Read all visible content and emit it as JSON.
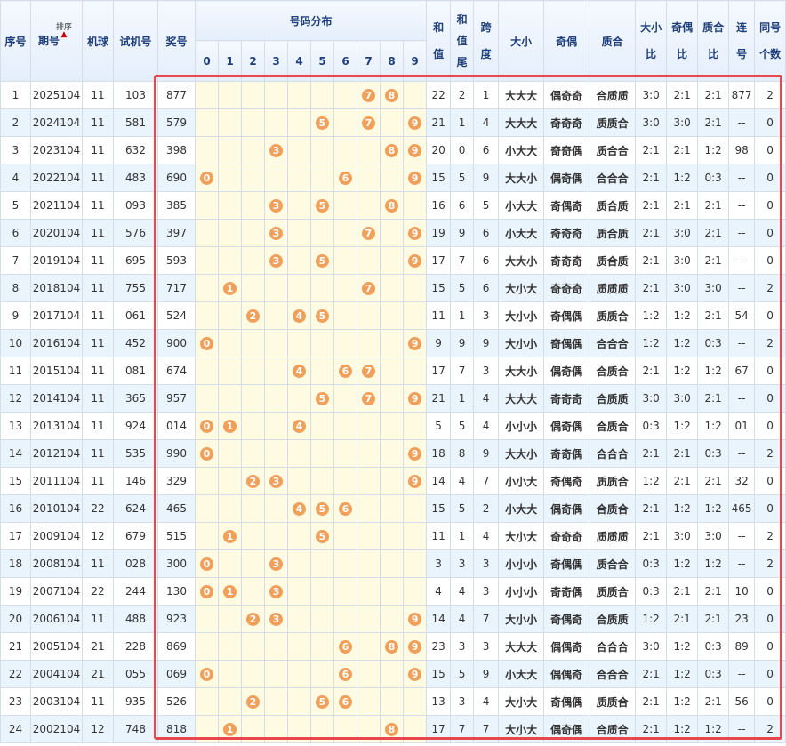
{
  "headers": {
    "seq": "序号",
    "period": "期号",
    "sort": "排序",
    "machine": "机球",
    "trial": "试机号",
    "prize": "奖号",
    "dist": "号码分布",
    "digits": [
      "0",
      "1",
      "2",
      "3",
      "4",
      "5",
      "6",
      "7",
      "8",
      "9"
    ],
    "sum": "和值",
    "sum_tail": "和值尾",
    "span": "跨度",
    "size": "大小",
    "parity": "奇偶",
    "prime": "质合",
    "size_ratio": "大小比",
    "parity_ratio": "奇偶比",
    "prime_ratio": "质合比",
    "consec": "连号",
    "same": "同号个数"
  },
  "rows": [
    {
      "seq": "1",
      "period": "2025104",
      "machine": "11",
      "trial": "103",
      "prize": "877",
      "digits": [
        7,
        8
      ],
      "sum": "22",
      "tail": "2",
      "span": "1",
      "size": "大大大",
      "parity": "偶奇奇",
      "prime": "合质质",
      "sr": "3:0",
      "pr": "2:1",
      "qr": "2:1",
      "consec": "877",
      "same": "2"
    },
    {
      "seq": "2",
      "period": "2024104",
      "machine": "11",
      "trial": "581",
      "prize": "579",
      "digits": [
        5,
        7,
        9
      ],
      "sum": "21",
      "tail": "1",
      "span": "4",
      "size": "大大大",
      "parity": "奇奇奇",
      "prime": "质质合",
      "sr": "3:0",
      "pr": "3:0",
      "qr": "2:1",
      "consec": "--",
      "same": "0"
    },
    {
      "seq": "3",
      "period": "2023104",
      "machine": "11",
      "trial": "632",
      "prize": "398",
      "digits": [
        3,
        8,
        9
      ],
      "sum": "20",
      "tail": "0",
      "span": "6",
      "size": "小大大",
      "parity": "奇奇偶",
      "prime": "质合合",
      "sr": "2:1",
      "pr": "2:1",
      "qr": "1:2",
      "consec": "98",
      "same": "0"
    },
    {
      "seq": "4",
      "period": "2022104",
      "machine": "11",
      "trial": "483",
      "prize": "690",
      "digits": [
        0,
        6,
        9
      ],
      "sum": "15",
      "tail": "5",
      "span": "9",
      "size": "大大小",
      "parity": "偶奇偶",
      "prime": "合合合",
      "sr": "2:1",
      "pr": "1:2",
      "qr": "0:3",
      "consec": "--",
      "same": "0"
    },
    {
      "seq": "5",
      "period": "2021104",
      "machine": "11",
      "trial": "093",
      "prize": "385",
      "digits": [
        3,
        5,
        8
      ],
      "sum": "16",
      "tail": "6",
      "span": "5",
      "size": "小大大",
      "parity": "奇偶奇",
      "prime": "质合质",
      "sr": "2:1",
      "pr": "2:1",
      "qr": "2:1",
      "consec": "--",
      "same": "0"
    },
    {
      "seq": "6",
      "period": "2020104",
      "machine": "11",
      "trial": "576",
      "prize": "397",
      "digits": [
        3,
        7,
        9
      ],
      "sum": "19",
      "tail": "9",
      "span": "6",
      "size": "小大大",
      "parity": "奇奇奇",
      "prime": "质合质",
      "sr": "2:1",
      "pr": "3:0",
      "qr": "2:1",
      "consec": "--",
      "same": "0"
    },
    {
      "seq": "7",
      "period": "2019104",
      "machine": "11",
      "trial": "695",
      "prize": "593",
      "digits": [
        3,
        5,
        9
      ],
      "sum": "17",
      "tail": "7",
      "span": "6",
      "size": "大大小",
      "parity": "奇奇奇",
      "prime": "质合质",
      "sr": "2:1",
      "pr": "3:0",
      "qr": "2:1",
      "consec": "--",
      "same": "0"
    },
    {
      "seq": "8",
      "period": "2018104",
      "machine": "11",
      "trial": "755",
      "prize": "717",
      "digits": [
        1,
        7
      ],
      "sum": "15",
      "tail": "5",
      "span": "6",
      "size": "大小大",
      "parity": "奇奇奇",
      "prime": "质质质",
      "sr": "2:1",
      "pr": "3:0",
      "qr": "3:0",
      "consec": "--",
      "same": "2"
    },
    {
      "seq": "9",
      "period": "2017104",
      "machine": "11",
      "trial": "061",
      "prize": "524",
      "digits": [
        2,
        4,
        5
      ],
      "sum": "11",
      "tail": "1",
      "span": "3",
      "size": "大小小",
      "parity": "奇偶偶",
      "prime": "质质合",
      "sr": "1:2",
      "pr": "1:2",
      "qr": "2:1",
      "consec": "54",
      "same": "0"
    },
    {
      "seq": "10",
      "period": "2016104",
      "machine": "11",
      "trial": "452",
      "prize": "900",
      "digits": [
        0,
        9
      ],
      "sum": "9",
      "tail": "9",
      "span": "9",
      "size": "大小小",
      "parity": "奇偶偶",
      "prime": "合合合",
      "sr": "1:2",
      "pr": "1:2",
      "qr": "0:3",
      "consec": "--",
      "same": "2"
    },
    {
      "seq": "11",
      "period": "2015104",
      "machine": "11",
      "trial": "081",
      "prize": "674",
      "digits": [
        4,
        6,
        7
      ],
      "sum": "17",
      "tail": "7",
      "span": "3",
      "size": "大大小",
      "parity": "偶奇偶",
      "prime": "合质合",
      "sr": "2:1",
      "pr": "1:2",
      "qr": "1:2",
      "consec": "67",
      "same": "0"
    },
    {
      "seq": "12",
      "period": "2014104",
      "machine": "11",
      "trial": "365",
      "prize": "957",
      "digits": [
        5,
        7,
        9
      ],
      "sum": "21",
      "tail": "1",
      "span": "4",
      "size": "大大大",
      "parity": "奇奇奇",
      "prime": "合质质",
      "sr": "3:0",
      "pr": "3:0",
      "qr": "2:1",
      "consec": "--",
      "same": "0"
    },
    {
      "seq": "13",
      "period": "2013104",
      "machine": "11",
      "trial": "924",
      "prize": "014",
      "digits": [
        0,
        1,
        4
      ],
      "sum": "5",
      "tail": "5",
      "span": "4",
      "size": "小小小",
      "parity": "偶奇偶",
      "prime": "合质合",
      "sr": "0:3",
      "pr": "1:2",
      "qr": "1:2",
      "consec": "01",
      "same": "0"
    },
    {
      "seq": "14",
      "period": "2012104",
      "machine": "11",
      "trial": "535",
      "prize": "990",
      "digits": [
        0,
        9
      ],
      "sum": "18",
      "tail": "8",
      "span": "9",
      "size": "大大小",
      "parity": "奇奇偶",
      "prime": "合合合",
      "sr": "2:1",
      "pr": "2:1",
      "qr": "0:3",
      "consec": "--",
      "same": "2"
    },
    {
      "seq": "15",
      "period": "2011104",
      "machine": "11",
      "trial": "146",
      "prize": "329",
      "digits": [
        2,
        3,
        9
      ],
      "sum": "14",
      "tail": "4",
      "span": "7",
      "size": "小小大",
      "parity": "奇偶奇",
      "prime": "质质合",
      "sr": "1:2",
      "pr": "2:1",
      "qr": "2:1",
      "consec": "32",
      "same": "0"
    },
    {
      "seq": "16",
      "period": "2010104",
      "machine": "22",
      "trial": "624",
      "prize": "465",
      "digits": [
        4,
        5,
        6
      ],
      "sum": "15",
      "tail": "5",
      "span": "2",
      "size": "小大大",
      "parity": "偶奇偶",
      "prime": "合质合",
      "sr": "2:1",
      "pr": "1:2",
      "qr": "1:2",
      "consec": "465",
      "same": "0"
    },
    {
      "seq": "17",
      "period": "2009104",
      "machine": "12",
      "trial": "679",
      "prize": "515",
      "digits": [
        1,
        5
      ],
      "sum": "11",
      "tail": "1",
      "span": "4",
      "size": "大小大",
      "parity": "奇奇奇",
      "prime": "质质质",
      "sr": "2:1",
      "pr": "3:0",
      "qr": "3:0",
      "consec": "--",
      "same": "2"
    },
    {
      "seq": "18",
      "period": "2008104",
      "machine": "11",
      "trial": "028",
      "prize": "300",
      "digits": [
        0,
        3
      ],
      "sum": "3",
      "tail": "3",
      "span": "3",
      "size": "小小小",
      "parity": "奇偶偶",
      "prime": "质合合",
      "sr": "0:3",
      "pr": "1:2",
      "qr": "1:2",
      "consec": "--",
      "same": "2"
    },
    {
      "seq": "19",
      "period": "2007104",
      "machine": "22",
      "trial": "244",
      "prize": "130",
      "digits": [
        0,
        1,
        3
      ],
      "sum": "4",
      "tail": "4",
      "span": "3",
      "size": "小小小",
      "parity": "奇奇偶",
      "prime": "质质合",
      "sr": "0:3",
      "pr": "2:1",
      "qr": "2:1",
      "consec": "10",
      "same": "0"
    },
    {
      "seq": "20",
      "period": "2006104",
      "machine": "11",
      "trial": "488",
      "prize": "923",
      "digits": [
        2,
        3,
        9
      ],
      "sum": "14",
      "tail": "4",
      "span": "7",
      "size": "大小小",
      "parity": "奇偶奇",
      "prime": "合质质",
      "sr": "1:2",
      "pr": "2:1",
      "qr": "2:1",
      "consec": "23",
      "same": "0"
    },
    {
      "seq": "21",
      "period": "2005104",
      "machine": "21",
      "trial": "228",
      "prize": "869",
      "digits": [
        6,
        8,
        9
      ],
      "sum": "23",
      "tail": "3",
      "span": "3",
      "size": "大大大",
      "parity": "偶偶奇",
      "prime": "合合合",
      "sr": "3:0",
      "pr": "1:2",
      "qr": "0:3",
      "consec": "89",
      "same": "0"
    },
    {
      "seq": "22",
      "period": "2004104",
      "machine": "21",
      "trial": "055",
      "prize": "069",
      "digits": [
        0,
        6,
        9
      ],
      "sum": "15",
      "tail": "5",
      "span": "9",
      "size": "小大大",
      "parity": "偶偶奇",
      "prime": "合合合",
      "sr": "2:1",
      "pr": "1:2",
      "qr": "0:3",
      "consec": "--",
      "same": "0"
    },
    {
      "seq": "23",
      "period": "2003104",
      "machine": "11",
      "trial": "935",
      "prize": "526",
      "digits": [
        2,
        5,
        6
      ],
      "sum": "13",
      "tail": "3",
      "span": "4",
      "size": "大小大",
      "parity": "奇偶偶",
      "prime": "质质合",
      "sr": "2:1",
      "pr": "1:2",
      "qr": "2:1",
      "consec": "56",
      "same": "0"
    },
    {
      "seq": "24",
      "period": "2002104",
      "machine": "12",
      "trial": "748",
      "prize": "818",
      "digits": [
        1,
        8
      ],
      "sum": "17",
      "tail": "7",
      "span": "7",
      "size": "大小大",
      "parity": "偶奇偶",
      "prime": "合质合",
      "sr": "2:1",
      "pr": "1:2",
      "qr": "1:2",
      "consec": "--",
      "same": "2"
    }
  ]
}
